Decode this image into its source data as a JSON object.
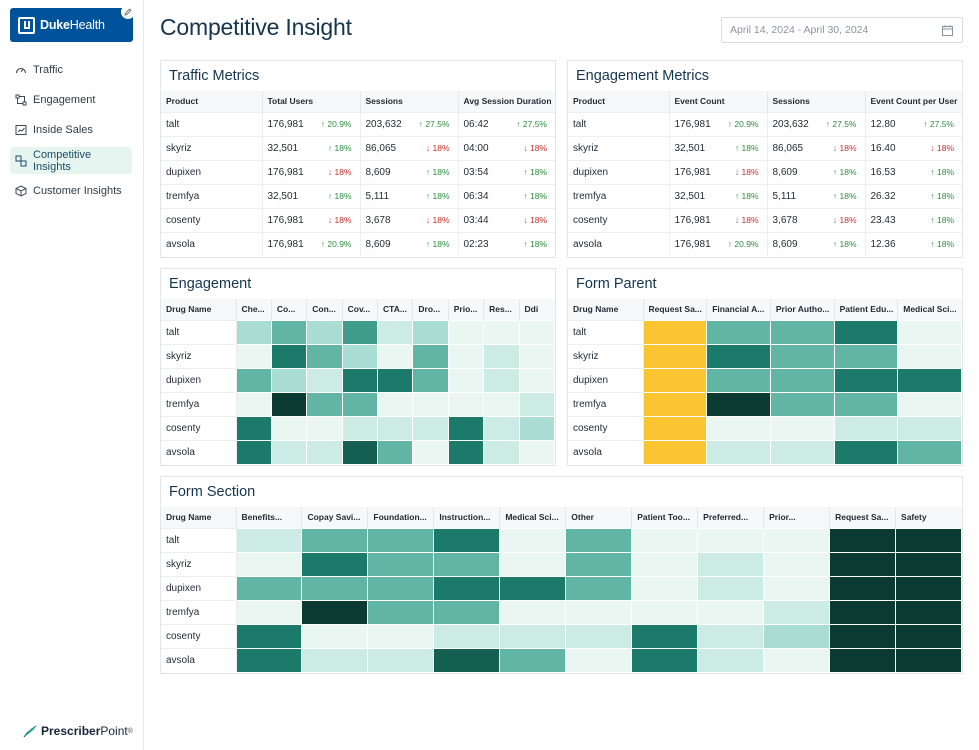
{
  "brand": {
    "name_bold": "Duke",
    "name_rest": "Health"
  },
  "nav": [
    {
      "label": "Traffic",
      "icon": "gauge-icon",
      "active": false
    },
    {
      "label": "Engagement",
      "icon": "flow-icon",
      "active": false
    },
    {
      "label": "Inside Sales",
      "icon": "chart-icon",
      "active": false
    },
    {
      "label": "Competitive Insights",
      "icon": "compare-icon",
      "active": true
    },
    {
      "label": "Customer Insights",
      "icon": "cube-icon",
      "active": false
    }
  ],
  "footer": {
    "bold": "Prescriber",
    "rest": "Point",
    "mark": "®"
  },
  "page_title": "Competitive Insight",
  "date_range": "April 14, 2024 - April 30, 2024",
  "colors": {
    "accent": "#00539b",
    "up": "#2e8b3d",
    "down": "#c4302b",
    "highlight": "#fbc531"
  },
  "traffic": {
    "title": "Traffic Metrics",
    "columns": [
      "Product",
      "Total Users",
      "Sessions",
      "Avg Session Duration"
    ],
    "rows": [
      [
        "talt",
        "176,981",
        "↑ 20.9%",
        "up",
        "203,632",
        "↑ 27.5%",
        "up",
        "06:42",
        "↑ 27.5%",
        "up"
      ],
      [
        "skyriz",
        "32,501",
        "↑ 18%",
        "up",
        "86,065",
        "↓ 18%",
        "down",
        "04:00",
        "↓ 18%",
        "down"
      ],
      [
        "dupixen",
        "176,981",
        "↓ 18%",
        "down",
        "8,609",
        "↑ 18%",
        "up",
        "03:54",
        "↑ 18%",
        "up"
      ],
      [
        "tremfya",
        "32,501",
        "↑ 18%",
        "up",
        "5,111",
        "↑ 18%",
        "up",
        "06:34",
        "↑ 18%",
        "up"
      ],
      [
        "cosenty",
        "176,981",
        "↓ 18%",
        "down",
        "3,678",
        "↓ 18%",
        "down",
        "03:44",
        "↓ 18%",
        "down"
      ],
      [
        "avsola",
        "176,981",
        "↑ 20.9%",
        "up",
        "8,609",
        "↑ 18%",
        "up",
        "02:23",
        "↑ 18%",
        "up"
      ]
    ]
  },
  "engagement_metrics": {
    "title": "Engagement Metrics",
    "columns": [
      "Product",
      "Event Count",
      "Sessions",
      "Event Count per User"
    ],
    "rows": [
      [
        "talt",
        "176,981",
        "↑ 20.9%",
        "up",
        "203,632",
        "↑ 27.5%",
        "up",
        "12.80",
        "↑ 27.5%",
        "up"
      ],
      [
        "skyriz",
        "32,501",
        "↑ 18%",
        "up",
        "86,065",
        "↓ 18%",
        "down",
        "16.40",
        "↓ 18%",
        "down"
      ],
      [
        "dupixen",
        "176,981",
        "↓ 18%",
        "down",
        "8,609",
        "↑ 18%",
        "up",
        "16.53",
        "↑ 18%",
        "up"
      ],
      [
        "tremfya",
        "32,501",
        "↑ 18%",
        "up",
        "5,111",
        "↑ 18%",
        "up",
        "26.32",
        "↑ 18%",
        "up"
      ],
      [
        "cosenty",
        "176,981",
        "↓ 18%",
        "down",
        "3,678",
        "↓ 18%",
        "down",
        "23.43",
        "↑ 18%",
        "up"
      ],
      [
        "avsola",
        "176,981",
        "↑ 20.9%",
        "up",
        "8,609",
        "↑ 18%",
        "up",
        "12.36",
        "↑ 18%",
        "up"
      ]
    ]
  },
  "engagement_heatmap": {
    "title": "Engagement",
    "columns": [
      "Drug Name",
      "Che...",
      "Co...",
      "Con...",
      "Cov...",
      "CTA...",
      "Dro...",
      "Prio...",
      "Res...",
      "Ddi"
    ],
    "rows": [
      "talt",
      "skyriz",
      "dupixen",
      "tremfya",
      "cosenty",
      "avsola"
    ],
    "levels": [
      [
        3,
        4,
        3,
        5,
        2,
        3,
        1,
        1,
        1
      ],
      [
        1,
        6,
        4,
        3,
        1,
        4,
        1,
        2,
        1
      ],
      [
        4,
        3,
        2,
        6,
        6,
        4,
        1,
        2,
        1
      ],
      [
        1,
        8,
        4,
        4,
        1,
        1,
        1,
        1,
        2
      ],
      [
        6,
        1,
        1,
        2,
        2,
        2,
        6,
        2,
        3
      ],
      [
        6,
        2,
        2,
        7,
        4,
        1,
        6,
        2,
        1
      ]
    ]
  },
  "form_parent": {
    "title": "Form Parent",
    "columns": [
      "Drug Name",
      "Request Sa...",
      "Financial A...",
      "Prior Autho...",
      "Patient Edu...",
      "Medical Sci..."
    ],
    "rows": [
      "talt",
      "skyriz",
      "dupixen",
      "tremfya",
      "cosenty",
      "avsola"
    ],
    "levels": [
      [
        "Y",
        4,
        4,
        6,
        1
      ],
      [
        "Y",
        6,
        4,
        4,
        1
      ],
      [
        "Y",
        4,
        4,
        6,
        6
      ],
      [
        "Y",
        8,
        4,
        4,
        1
      ],
      [
        "Y",
        1,
        1,
        2,
        2
      ],
      [
        "Y",
        2,
        2,
        6,
        4
      ]
    ]
  },
  "form_section": {
    "title": "Form Section",
    "columns": [
      "Drug Name",
      "Benefits...",
      "Copay Savi...",
      "Foundation...",
      "Instruction...",
      "Medical Sci...",
      "Other",
      "Patient Too...",
      "Preferred...",
      "Prior...",
      "Request Sa...",
      "Safety"
    ],
    "rows": [
      "talt",
      "skyriz",
      "dupixen",
      "tremfya",
      "cosenty",
      "avsola"
    ],
    "levels": [
      [
        2,
        4,
        4,
        6,
        1,
        4,
        1,
        1,
        1,
        8,
        8
      ],
      [
        1,
        6,
        4,
        4,
        1,
        4,
        1,
        2,
        1,
        8,
        8
      ],
      [
        4,
        4,
        4,
        6,
        6,
        4,
        1,
        2,
        1,
        8,
        8
      ],
      [
        1,
        8,
        4,
        4,
        1,
        1,
        1,
        1,
        2,
        8,
        8
      ],
      [
        6,
        1,
        1,
        2,
        2,
        2,
        6,
        2,
        3,
        8,
        8
      ],
      [
        6,
        2,
        2,
        7,
        4,
        1,
        6,
        2,
        1,
        8,
        8
      ]
    ]
  }
}
